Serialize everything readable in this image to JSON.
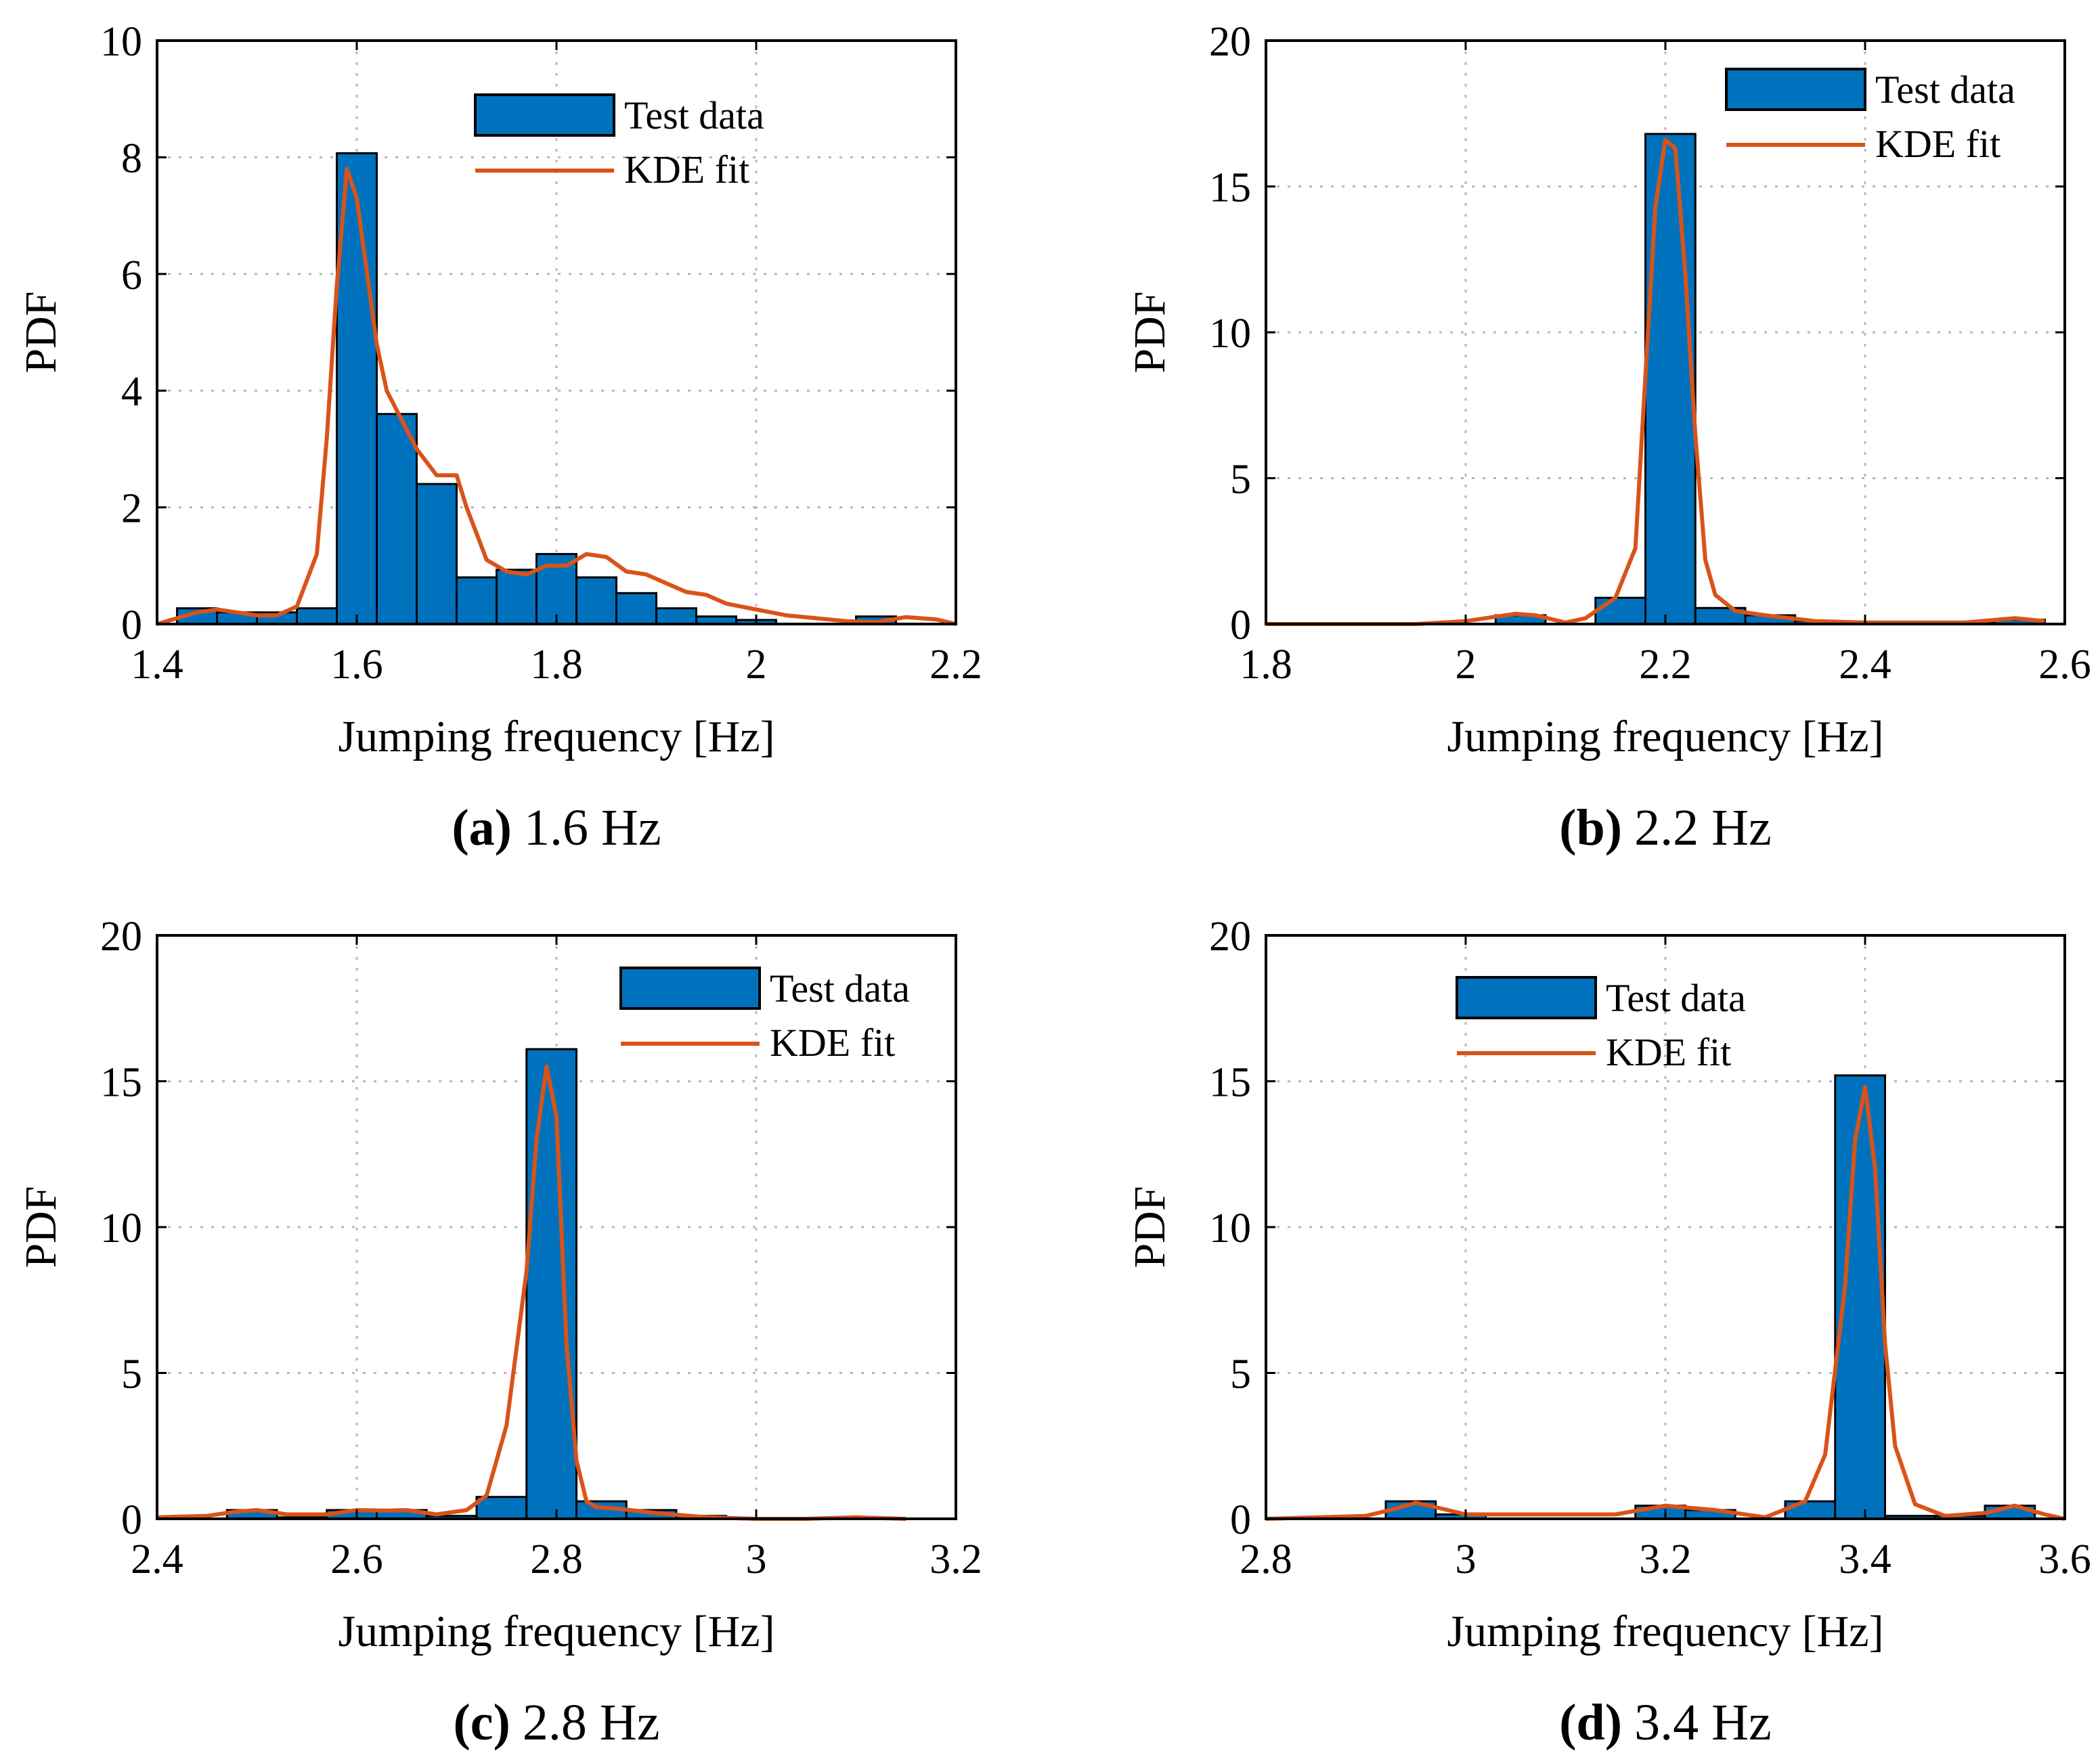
{
  "figure": {
    "bar_color": "#0072BD",
    "line_color": "#D95319",
    "grid_color": "#B8B8B8"
  },
  "chart_data": [
    {
      "type": "bar",
      "panel": "a",
      "caption": {
        "letter": "(a)",
        "text": "1.6 Hz"
      },
      "xlabel": "Jumping frequency [Hz]",
      "ylabel": "PDF",
      "xlim": [
        1.4,
        2.2
      ],
      "ylim": [
        0,
        10
      ],
      "xticks": [
        1.4,
        1.6,
        1.8,
        2.0,
        2.2
      ],
      "xtick_labels": [
        "1.4",
        "1.6",
        "1.8",
        "2",
        "2.2"
      ],
      "yticks": [
        0,
        2,
        4,
        6,
        8,
        10
      ],
      "ytick_labels": [
        "0",
        "2",
        "4",
        "6",
        "8",
        "10"
      ],
      "grid": true,
      "legend": {
        "position": "top-right",
        "entries": [
          "Test data",
          "KDE fit"
        ]
      },
      "series": [
        {
          "name": "Test data",
          "kind": "histogram",
          "bin_edges": [
            1.42,
            1.46,
            1.5,
            1.54,
            1.58,
            1.62,
            1.66,
            1.7,
            1.74,
            1.78,
            1.82,
            1.86,
            1.9,
            1.94,
            1.98,
            2.02,
            2.06,
            2.1,
            2.14,
            2.18
          ],
          "values": [
            0.27,
            0.2,
            0.2,
            0.27,
            8.07,
            3.6,
            2.4,
            0.8,
            0.93,
            1.2,
            0.8,
            0.53,
            0.27,
            0.13,
            0.07,
            0.0,
            0.0,
            0.13,
            0.0
          ]
        },
        {
          "name": "KDE fit",
          "kind": "line",
          "x": [
            1.4,
            1.42,
            1.44,
            1.46,
            1.48,
            1.5,
            1.52,
            1.54,
            1.56,
            1.57,
            1.58,
            1.59,
            1.6,
            1.62,
            1.63,
            1.66,
            1.68,
            1.7,
            1.71,
            1.73,
            1.75,
            1.77,
            1.79,
            1.81,
            1.83,
            1.85,
            1.87,
            1.89,
            1.91,
            1.93,
            1.95,
            1.97,
            2.0,
            2.03,
            2.06,
            2.09,
            2.12,
            2.15,
            2.18,
            2.2
          ],
          "values": [
            0.0,
            0.1,
            0.2,
            0.25,
            0.2,
            0.15,
            0.15,
            0.3,
            1.2,
            3.2,
            5.8,
            7.8,
            7.3,
            4.8,
            4.0,
            3.0,
            2.55,
            2.55,
            2.0,
            1.1,
            0.9,
            0.85,
            1.0,
            1.0,
            1.2,
            1.15,
            0.9,
            0.85,
            0.7,
            0.55,
            0.5,
            0.35,
            0.25,
            0.15,
            0.1,
            0.05,
            0.03,
            0.12,
            0.08,
            0.0
          ]
        }
      ]
    },
    {
      "type": "bar",
      "panel": "b",
      "caption": {
        "letter": "(b)",
        "text": "2.2 Hz"
      },
      "xlabel": "Jumping frequency [Hz]",
      "ylabel": "PDF",
      "xlim": [
        1.8,
        2.6
      ],
      "ylim": [
        0,
        20
      ],
      "xticks": [
        1.8,
        2.0,
        2.2,
        2.4,
        2.6
      ],
      "xtick_labels": [
        "1.8",
        "2",
        "2.2",
        "2.4",
        "2.6"
      ],
      "yticks": [
        0,
        5,
        10,
        15,
        20
      ],
      "ytick_labels": [
        "0",
        "5",
        "10",
        "15",
        "20"
      ],
      "grid": true,
      "legend": {
        "position": "top-right",
        "entries": [
          "Test data",
          "KDE fit"
        ]
      },
      "series": [
        {
          "name": "Test data",
          "kind": "histogram",
          "bin_edges": [
            2.03,
            2.08,
            2.13,
            2.18,
            2.23,
            2.28,
            2.33,
            2.38,
            2.43,
            2.48,
            2.53,
            2.58
          ],
          "values": [
            0.3,
            0.0,
            0.9,
            16.8,
            0.55,
            0.3,
            0.1,
            0.05,
            0.05,
            0.05,
            0.15
          ]
        },
        {
          "name": "KDE fit",
          "kind": "line",
          "x": [
            1.8,
            1.95,
            2.0,
            2.03,
            2.05,
            2.07,
            2.1,
            2.12,
            2.15,
            2.17,
            2.18,
            2.19,
            2.2,
            2.21,
            2.22,
            2.23,
            2.24,
            2.25,
            2.27,
            2.3,
            2.35,
            2.4,
            2.5,
            2.55,
            2.58
          ],
          "values": [
            0.0,
            0.0,
            0.1,
            0.25,
            0.35,
            0.3,
            0.05,
            0.2,
            0.9,
            2.6,
            8.5,
            14.3,
            16.6,
            16.3,
            12.0,
            6.5,
            2.2,
            1.0,
            0.45,
            0.3,
            0.1,
            0.05,
            0.05,
            0.2,
            0.1
          ]
        }
      ]
    },
    {
      "type": "bar",
      "panel": "c",
      "caption": {
        "letter": "(c)",
        "text": "2.8 Hz"
      },
      "xlabel": "Jumping frequency [Hz]",
      "ylabel": "PDF",
      "xlim": [
        2.4,
        3.2
      ],
      "ylim": [
        0,
        20
      ],
      "xticks": [
        2.4,
        2.6,
        2.8,
        3.0,
        3.2
      ],
      "xtick_labels": [
        "2.4",
        "2.6",
        "2.8",
        "3",
        "3.2"
      ],
      "yticks": [
        0,
        5,
        10,
        15,
        20
      ],
      "ytick_labels": [
        "0",
        "5",
        "10",
        "15",
        "20"
      ],
      "grid": true,
      "legend": {
        "position": "top-right",
        "entries": [
          "Test data",
          "KDE fit"
        ]
      },
      "series": [
        {
          "name": "Test data",
          "kind": "histogram",
          "bin_edges": [
            2.47,
            2.52,
            2.57,
            2.62,
            2.67,
            2.72,
            2.77,
            2.82,
            2.87,
            2.92,
            2.97,
            3.02,
            3.07,
            3.12
          ],
          "values": [
            0.3,
            0.05,
            0.3,
            0.3,
            0.1,
            0.75,
            16.1,
            0.6,
            0.3,
            0.1,
            0.0,
            0.0,
            0.05
          ]
        },
        {
          "name": "KDE fit",
          "kind": "line",
          "x": [
            2.4,
            2.45,
            2.48,
            2.5,
            2.53,
            2.57,
            2.6,
            2.63,
            2.65,
            2.68,
            2.71,
            2.73,
            2.75,
            2.77,
            2.78,
            2.79,
            2.8,
            2.81,
            2.82,
            2.83,
            2.84,
            2.86,
            2.9,
            2.95,
            3.0,
            3.05,
            3.1,
            3.15
          ],
          "values": [
            0.05,
            0.1,
            0.25,
            0.3,
            0.15,
            0.15,
            0.3,
            0.28,
            0.3,
            0.15,
            0.3,
            0.8,
            3.2,
            8.5,
            13.0,
            15.5,
            13.8,
            6.0,
            2.0,
            0.6,
            0.4,
            0.35,
            0.2,
            0.05,
            0.0,
            0.0,
            0.05,
            0.0
          ]
        }
      ]
    },
    {
      "type": "bar",
      "panel": "d",
      "caption": {
        "letter": "(d)",
        "text": "3.4 Hz"
      },
      "xlabel": "Jumping frequency [Hz]",
      "ylabel": "PDF",
      "xlim": [
        2.8,
        3.6
      ],
      "ylim": [
        0,
        20
      ],
      "xticks": [
        2.8,
        3.0,
        3.2,
        3.4,
        3.6
      ],
      "xtick_labels": [
        "2.8",
        "3",
        "3.2",
        "3.4",
        "3.6"
      ],
      "yticks": [
        0,
        5,
        10,
        15,
        20
      ],
      "ytick_labels": [
        "0",
        "5",
        "10",
        "15",
        "20"
      ],
      "grid": true,
      "legend": {
        "position": "top-center",
        "entries": [
          "Test data",
          "KDE fit"
        ]
      },
      "series": [
        {
          "name": "Test data",
          "kind": "histogram",
          "bin_edges": [
            2.92,
            2.97,
            3.02,
            3.07,
            3.12,
            3.17,
            3.22,
            3.27,
            3.32,
            3.37,
            3.42,
            3.47,
            3.52,
            3.57
          ],
          "values": [
            0.6,
            0.15,
            0.0,
            0.0,
            0.0,
            0.45,
            0.3,
            0.0,
            0.6,
            15.2,
            0.1,
            0.1,
            0.45
          ]
        },
        {
          "name": "KDE fit",
          "kind": "line",
          "x": [
            2.8,
            2.9,
            2.93,
            2.95,
            2.97,
            3.0,
            3.05,
            3.1,
            3.15,
            3.2,
            3.25,
            3.3,
            3.34,
            3.36,
            3.38,
            3.39,
            3.4,
            3.41,
            3.42,
            3.43,
            3.45,
            3.48,
            3.52,
            3.55,
            3.58,
            3.6
          ],
          "values": [
            0.0,
            0.1,
            0.35,
            0.55,
            0.4,
            0.15,
            0.15,
            0.15,
            0.15,
            0.45,
            0.3,
            0.05,
            0.6,
            2.2,
            8.0,
            13.0,
            14.8,
            12.0,
            6.0,
            2.5,
            0.5,
            0.1,
            0.2,
            0.45,
            0.15,
            0.0
          ]
        }
      ]
    }
  ]
}
